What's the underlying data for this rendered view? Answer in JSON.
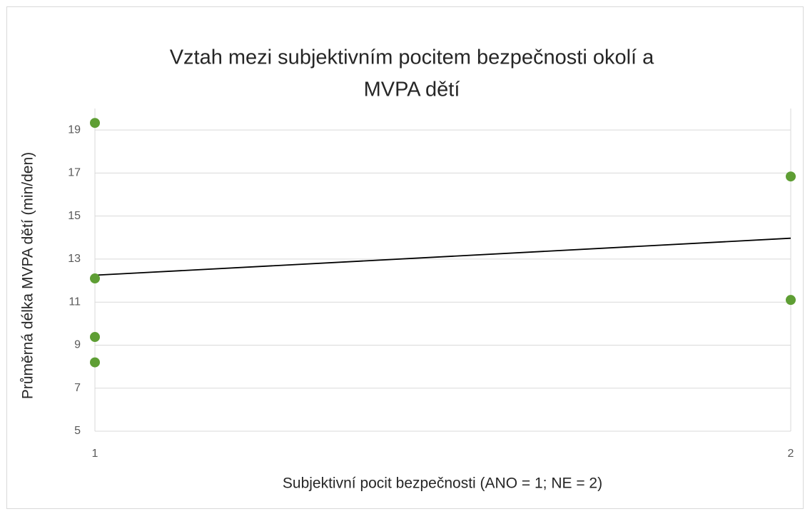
{
  "chart_data": {
    "type": "scatter",
    "title": [
      "Vztah mezi subjektivním pocitem bezpečnosti okolí a",
      "MVPA dětí"
    ],
    "x_label": "Subjektivní pocit bezpečnosti (ANO = 1; NE = 2)",
    "y_label": "Průměrná délka MVPA dětí (min/den)",
    "series": [
      {
        "color": "#5e9e34",
        "x": [
          1,
          1,
          1,
          1,
          2,
          2
        ],
        "values": [
          19.33,
          12.1,
          9.38,
          8.2,
          16.84,
          11.1
        ]
      }
    ],
    "trendline": {
      "color": "#000000",
      "x": [
        1,
        2
      ],
      "values": [
        12.25,
        13.97
      ]
    },
    "xlim": [
      1,
      2
    ],
    "xticks": [
      1,
      2
    ],
    "ylim": [
      5,
      20
    ],
    "yticks": [
      5,
      7,
      9,
      11,
      13,
      15,
      17,
      19
    ],
    "grid": true
  }
}
